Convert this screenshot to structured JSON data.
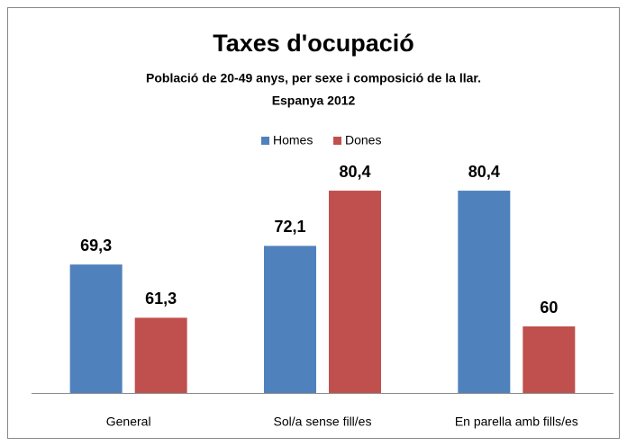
{
  "chart_data": {
    "type": "bar",
    "title": "Taxes d'ocupació",
    "subtitle": [
      "Població de 20-49 anys, per sexe i composició de la llar.",
      "Espanya 2012"
    ],
    "categories": [
      "General",
      "Sol/a sense fill/es",
      "En parella amb fills/es"
    ],
    "series": [
      {
        "name": "Homes",
        "color": "#4f81bd",
        "values": [
          69.3,
          72.1,
          80.4
        ],
        "value_labels": [
          "69,3",
          "72,1",
          "80,4"
        ]
      },
      {
        "name": "Dones",
        "color": "#c0504d",
        "values": [
          61.3,
          80.4,
          60
        ],
        "value_labels": [
          "61,3",
          "80,4",
          "60"
        ]
      }
    ],
    "ylim": [
      50,
      90
    ],
    "legend": "top"
  }
}
